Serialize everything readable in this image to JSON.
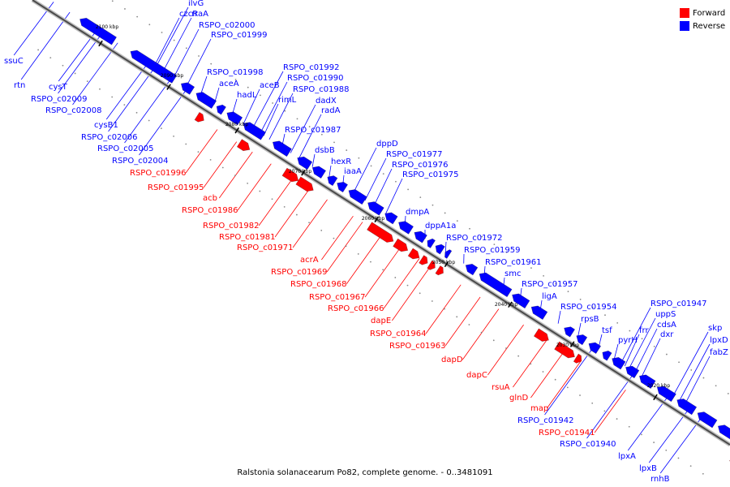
{
  "caption": "Ralstonia solanacearum Po82, complete genome. - 0..3481091",
  "legend": {
    "forward_label": "Forward",
    "reverse_label": "Reverse",
    "forward_color": "#ff0000",
    "reverse_color": "#0000ff"
  },
  "ticks": [
    "2100 kbp",
    "2090 kbp",
    "2080 kbp",
    "2070 kbp",
    "2060 kbp",
    "2050 kbp",
    "2040 kbp",
    "2030 kbp",
    "2020 kbp"
  ],
  "reverse_genes": [
    "ilvG",
    "czcR",
    "rraA",
    "RSPO_c02000",
    "RSPO_c01999",
    "RSPO_c01998",
    "aceA",
    "hadL",
    "aceB",
    "RSPO_c01992",
    "RSPO_c01990",
    "RSPO_c01988",
    "rimL",
    "dadX",
    "radA",
    "RSPO_c01987",
    "dsbB",
    "hexR",
    "dppD",
    "iaaA",
    "RSPO_c01977",
    "RSPO_c01976",
    "RSPO_c01975",
    "dmpA",
    "dppA1a",
    "RSPO_c01972",
    "RSPO_c01959",
    "RSPO_c01961",
    "smc",
    "RSPO_c01957",
    "ligA",
    "RSPO_c01954",
    "rpsB",
    "tsf",
    "pyrH",
    "frr",
    "uppS",
    "RSPO_c01947",
    "cdsA",
    "dxr",
    "skp",
    "lpxD",
    "fabZ",
    "ssuC",
    "rtn",
    "cysT",
    "RSPO_c02009",
    "RSPO_c02008",
    "cysB1",
    "RSPO_c02006",
    "RSPO_c02005",
    "RSPO_c02004",
    "RSPO_c01942",
    "RSPO_c01940",
    "lpxA",
    "lpxB",
    "rnhB"
  ],
  "forward_genes": [
    "RSPO_c01996",
    "RSPO_c01995",
    "acb",
    "RSPO_c01986",
    "RSPO_c01982",
    "RSPO_c01981",
    "RSPO_c01971",
    "acrA",
    "RSPO_c01969",
    "RSPO_c01968",
    "RSPO_c01967",
    "RSPO_c01966",
    "dapE",
    "RSPO_c01964",
    "RSPO_c01963",
    "dapD",
    "dapC",
    "rsuA",
    "glnD",
    "map",
    "RSPO_c01941"
  ]
}
